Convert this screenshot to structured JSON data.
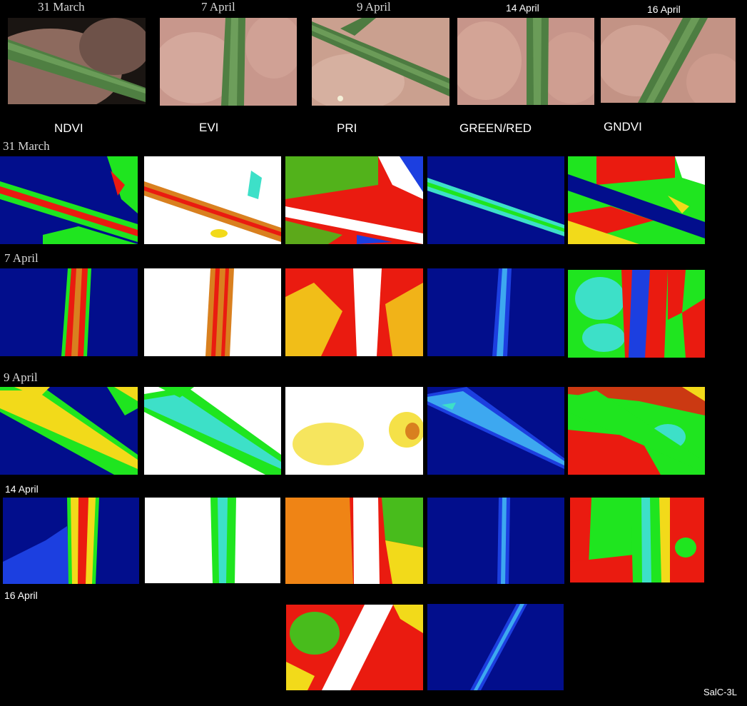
{
  "photo_dates": [
    "31 March",
    "7 April",
    "9 April",
    "14 April",
    "16 April"
  ],
  "index_headers": [
    "NDVI",
    "EVI",
    "PRI",
    "GREEN/RED",
    "GNDVI"
  ],
  "row_dates": [
    "31 March",
    "7 April",
    "9 April",
    "14 April",
    "16 April"
  ],
  "sample_label": "SalC-3L",
  "colors": {
    "background": "#000000",
    "dark_blue": "#020e8c",
    "blue": "#1c3fe0",
    "green": "#1fe51f",
    "cyan": "#3de0c8",
    "red": "#ea1b10",
    "yellow": "#f2da1a",
    "orange": "#d9801f",
    "white": "#ffffff",
    "skin": "#c9978a",
    "stem": "#5d8f4f"
  }
}
